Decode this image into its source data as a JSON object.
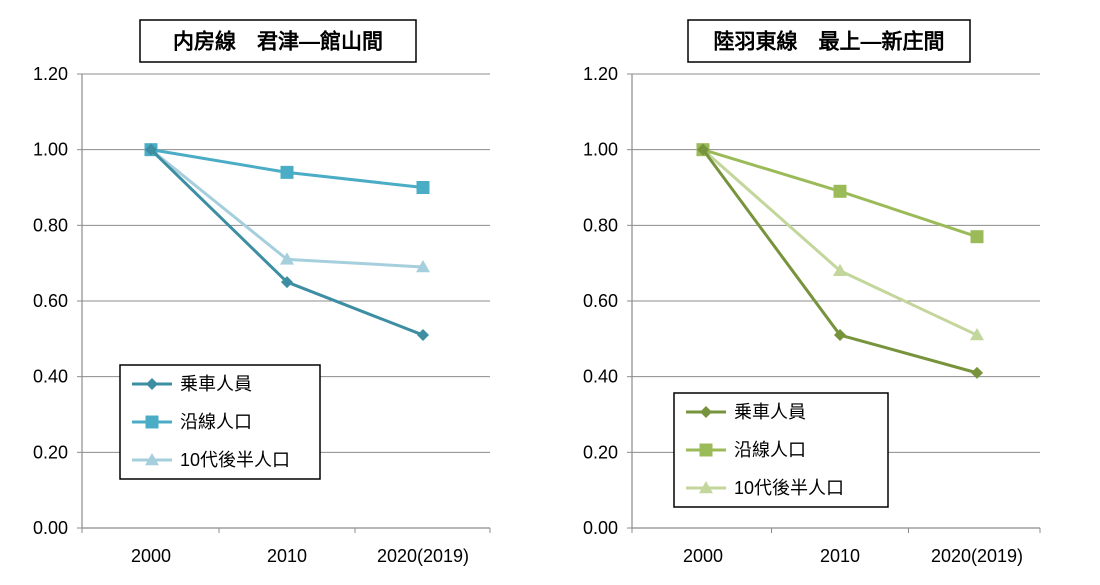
{
  "chart_data": [
    {
      "type": "line",
      "title": "内房線　君津―館山間",
      "categories": [
        "2000",
        "2010",
        "2020(2019)"
      ],
      "ylim": [
        0,
        1.2
      ],
      "yticks": [
        "0.00",
        "0.20",
        "0.40",
        "0.60",
        "0.80",
        "1.00",
        "1.20"
      ],
      "grid": true,
      "legend_position": "bottom-left",
      "series": [
        {
          "name": "乗車人員",
          "values": [
            1.0,
            0.65,
            0.51
          ],
          "marker": "diamond",
          "color": "#3d8ea3"
        },
        {
          "name": "沿線人口",
          "values": [
            1.0,
            0.94,
            0.9
          ],
          "marker": "square",
          "color": "#4bacc6"
        },
        {
          "name": "10代後半人口",
          "values": [
            1.0,
            0.71,
            0.69
          ],
          "marker": "triangle",
          "color": "#a6cfdd"
        }
      ]
    },
    {
      "type": "line",
      "title": "陸羽東線　最上―新庄間",
      "categories": [
        "2000",
        "2010",
        "2020(2019)"
      ],
      "ylim": [
        0,
        1.2
      ],
      "yticks": [
        "0.00",
        "0.20",
        "0.40",
        "0.60",
        "0.80",
        "1.00",
        "1.20"
      ],
      "grid": true,
      "legend_position": "bottom-left",
      "series": [
        {
          "name": "乗車人員",
          "values": [
            1.0,
            0.51,
            0.41
          ],
          "marker": "diamond",
          "color": "#77933c"
        },
        {
          "name": "沿線人口",
          "values": [
            1.0,
            0.89,
            0.77
          ],
          "marker": "square",
          "color": "#9bbb59"
        },
        {
          "name": "10代後半人口",
          "values": [
            1.0,
            0.68,
            0.51
          ],
          "marker": "triangle",
          "color": "#c3d69b"
        }
      ]
    }
  ]
}
